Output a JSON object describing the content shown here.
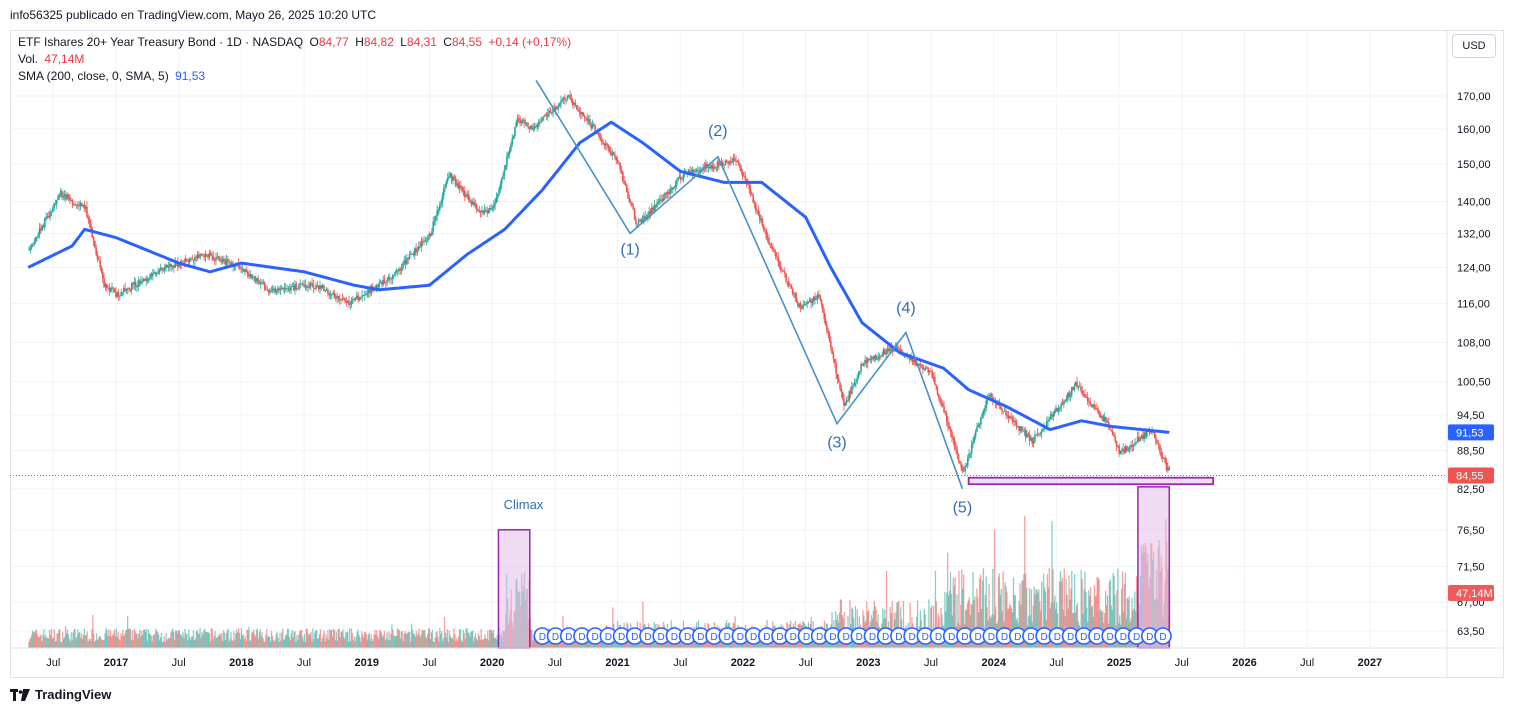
{
  "header": {
    "publisher_line": "info56325 publicado en TradingView.com, Mayo 26, 2025 10:20 UTC"
  },
  "legend": {
    "symbol": "ETF Ishares 20+ Year Treasury Bond · 1D · NASDAQ",
    "o_label": "O",
    "o_value": "84,77",
    "h_label": "H",
    "h_value": "84,82",
    "l_label": "L",
    "l_value": "84,31",
    "c_label": "C",
    "c_value": "84,55",
    "change": "+0,14 (+0,17%)",
    "vol_label": "Vol.",
    "vol_value": "47,14M",
    "sma_label": "SMA (200, close, 0, SMA, 5)",
    "sma_value": "91,53"
  },
  "currency_button": "USD",
  "footer": {
    "brand": "TradingView"
  },
  "colors": {
    "up": "#26a69a",
    "down": "#ef5350",
    "sma": "#2962ff",
    "wave": "#4a90c8",
    "box": "#9c27b0",
    "box_fill": "#e1bee7"
  },
  "chart_data": {
    "type": "candlestick",
    "price_axis": {
      "scale": "log",
      "ticks": [
        "170,00",
        "160,00",
        "150,00",
        "140,00",
        "132,00",
        "124,00",
        "116,00",
        "108,00",
        "100,50",
        "94,50",
        "88,50",
        "82,50",
        "76,50",
        "71,50",
        "67,00",
        "63,50"
      ]
    },
    "time_axis": {
      "ticks": [
        "Jul",
        "2017",
        "Jul",
        "2018",
        "Jul",
        "2019",
        "Jul",
        "2020",
        "Jul",
        "2021",
        "Jul",
        "2022",
        "Jul",
        "2023",
        "Jul",
        "2024",
        "Jul",
        "2025",
        "Jul",
        "2026",
        "Jul",
        "2027"
      ]
    },
    "price_badges": {
      "sma": "91,53",
      "last": "84,55",
      "volume": "47,14M"
    },
    "price_series": [
      {
        "t": 2016.3,
        "p": 128
      },
      {
        "t": 2016.55,
        "p": 142
      },
      {
        "t": 2016.75,
        "p": 138
      },
      {
        "t": 2016.9,
        "p": 120
      },
      {
        "t": 2017.0,
        "p": 118
      },
      {
        "t": 2017.4,
        "p": 124
      },
      {
        "t": 2017.7,
        "p": 127
      },
      {
        "t": 2018.0,
        "p": 124
      },
      {
        "t": 2018.2,
        "p": 119
      },
      {
        "t": 2018.6,
        "p": 120
      },
      {
        "t": 2018.85,
        "p": 116
      },
      {
        "t": 2019.2,
        "p": 122
      },
      {
        "t": 2019.5,
        "p": 132
      },
      {
        "t": 2019.65,
        "p": 147
      },
      {
        "t": 2019.9,
        "p": 137
      },
      {
        "t": 2020.0,
        "p": 138
      },
      {
        "t": 2020.2,
        "p": 163
      },
      {
        "t": 2020.3,
        "p": 160
      },
      {
        "t": 2020.6,
        "p": 170
      },
      {
        "t": 2020.85,
        "p": 158
      },
      {
        "t": 2021.0,
        "p": 150
      },
      {
        "t": 2021.15,
        "p": 134
      },
      {
        "t": 2021.55,
        "p": 148
      },
      {
        "t": 2021.8,
        "p": 150
      },
      {
        "t": 2021.95,
        "p": 151
      },
      {
        "t": 2022.2,
        "p": 130
      },
      {
        "t": 2022.45,
        "p": 115
      },
      {
        "t": 2022.6,
        "p": 118
      },
      {
        "t": 2022.8,
        "p": 96
      },
      {
        "t": 2022.95,
        "p": 104
      },
      {
        "t": 2023.2,
        "p": 107
      },
      {
        "t": 2023.5,
        "p": 102
      },
      {
        "t": 2023.75,
        "p": 85
      },
      {
        "t": 2023.95,
        "p": 98
      },
      {
        "t": 2024.3,
        "p": 90
      },
      {
        "t": 2024.65,
        "p": 100
      },
      {
        "t": 2024.9,
        "p": 93
      },
      {
        "t": 2025.0,
        "p": 88
      },
      {
        "t": 2025.25,
        "p": 92
      },
      {
        "t": 2025.4,
        "p": 84.55
      }
    ],
    "sma_series": [
      {
        "t": 2016.3,
        "p": 124
      },
      {
        "t": 2016.65,
        "p": 129
      },
      {
        "t": 2016.75,
        "p": 133
      },
      {
        "t": 2017.0,
        "p": 131
      },
      {
        "t": 2017.5,
        "p": 125
      },
      {
        "t": 2017.75,
        "p": 123
      },
      {
        "t": 2018.0,
        "p": 125
      },
      {
        "t": 2018.5,
        "p": 123
      },
      {
        "t": 2018.9,
        "p": 120
      },
      {
        "t": 2019.1,
        "p": 119
      },
      {
        "t": 2019.5,
        "p": 120
      },
      {
        "t": 2019.8,
        "p": 127
      },
      {
        "t": 2020.1,
        "p": 133
      },
      {
        "t": 2020.4,
        "p": 143
      },
      {
        "t": 2020.7,
        "p": 156
      },
      {
        "t": 2020.95,
        "p": 162
      },
      {
        "t": 2021.2,
        "p": 156
      },
      {
        "t": 2021.5,
        "p": 148
      },
      {
        "t": 2021.85,
        "p": 145
      },
      {
        "t": 2022.15,
        "p": 145
      },
      {
        "t": 2022.5,
        "p": 136
      },
      {
        "t": 2022.7,
        "p": 124
      },
      {
        "t": 2022.95,
        "p": 112
      },
      {
        "t": 2023.25,
        "p": 106
      },
      {
        "t": 2023.6,
        "p": 103
      },
      {
        "t": 2023.8,
        "p": 99
      },
      {
        "t": 2024.1,
        "p": 96
      },
      {
        "t": 2024.45,
        "p": 92
      },
      {
        "t": 2024.7,
        "p": 93.5
      },
      {
        "t": 2024.95,
        "p": 92.5
      },
      {
        "t": 2025.4,
        "p": 91.53
      }
    ],
    "wave_lines": [
      {
        "t": 2020.35,
        "p": 175
      },
      {
        "t": 2021.1,
        "p": 132
      },
      {
        "t": 2021.8,
        "p": 152
      },
      {
        "t": 2022.75,
        "p": 93
      },
      {
        "t": 2023.3,
        "p": 110
      },
      {
        "t": 2023.75,
        "p": 82.5
      }
    ],
    "wave_labels": [
      {
        "text": "(1)",
        "t": 2021.1,
        "p": 127
      },
      {
        "text": "(2)",
        "t": 2021.8,
        "p": 158
      },
      {
        "text": "(3)",
        "t": 2022.75,
        "p": 89
      },
      {
        "text": "(4)",
        "t": 2023.3,
        "p": 114
      },
      {
        "text": "(5)",
        "t": 2023.75,
        "p": 79
      }
    ],
    "annotations": [
      {
        "type": "label",
        "text": "Climax",
        "t": 2020.25,
        "p": 79.5
      }
    ],
    "support_zone": {
      "t_start": 2023.8,
      "t_end": 2025.75,
      "p_low": 83.2,
      "p_high": 84.2
    },
    "volume_boxes": [
      {
        "t_start": 2020.05,
        "t_end": 2020.3,
        "p_top": 76.5
      },
      {
        "t_start": 2025.15,
        "t_end": 2025.4,
        "p_top": 82.8
      }
    ],
    "dividend_markers": {
      "label": "D",
      "t_start": 2020.4,
      "t_end": 2025.35,
      "count": 48
    }
  }
}
